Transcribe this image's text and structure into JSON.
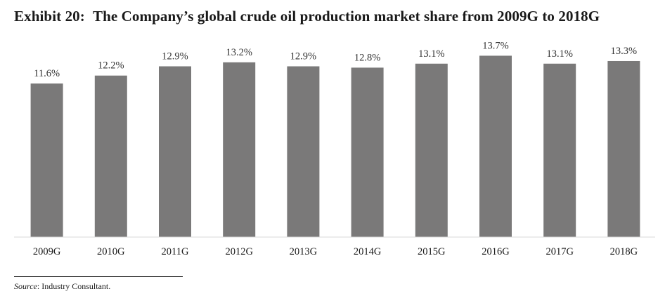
{
  "exhibit": {
    "label": "Exhibit 20:",
    "title": "The Company’s global crude oil production market share from 2009G to 2018G"
  },
  "chart_data": {
    "type": "bar",
    "categories": [
      "2009G",
      "2010G",
      "2011G",
      "2012G",
      "2013G",
      "2014G",
      "2015G",
      "2016G",
      "2017G",
      "2018G"
    ],
    "values": [
      11.6,
      12.2,
      12.9,
      13.2,
      12.9,
      12.8,
      13.1,
      13.7,
      13.1,
      13.3
    ],
    "value_labels": [
      "11.6%",
      "12.2%",
      "12.9%",
      "13.2%",
      "12.9%",
      "12.8%",
      "13.1%",
      "13.7%",
      "13.1%",
      "13.3%"
    ],
    "unit": "%",
    "ylim": [
      0,
      14.2
    ],
    "bar_color": "#7a7979",
    "grid": false,
    "legend": "none"
  },
  "source": {
    "prefix": "Source",
    "text": ": Industry Consultant."
  }
}
